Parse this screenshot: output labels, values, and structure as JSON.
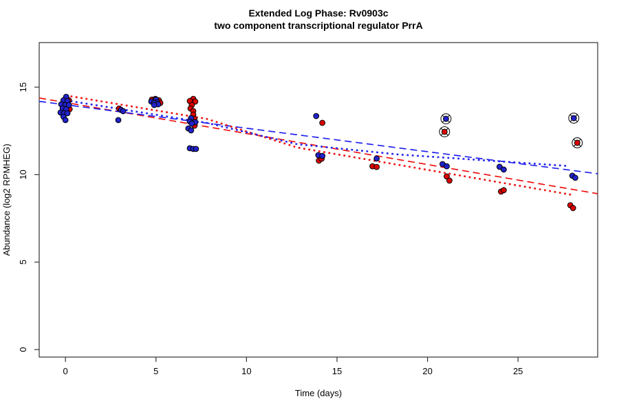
{
  "title": {
    "line1": "Extended Log Phase:      Rv0903c",
    "line2": "two component transcriptional regulator PrrA"
  },
  "chart_data": {
    "type": "scatter",
    "xlabel": "Time  (days)",
    "ylabel": "Abundance  (log2 RPMHEG)",
    "x_range": [
      -1.45,
      29.4
    ],
    "y_range": [
      -0.43,
      17.55
    ],
    "x_ticks": [
      0,
      5,
      10,
      15,
      20,
      25
    ],
    "y_ticks": [
      0,
      5,
      10,
      15
    ],
    "grid": false,
    "legend": "none",
    "colors": {
      "red_point": "#dd0000",
      "blue_point": "#2222cc",
      "red_line": "#ee1111",
      "blue_line": "#2222ee",
      "point_stroke": "#000000",
      "axis": "#333333",
      "outlier_ring": "#111111"
    },
    "series": [
      {
        "name": "red",
        "color_key": "red_point",
        "points": [
          {
            "t": 0.19,
            "v": 14.25
          },
          {
            "t": 0.23,
            "v": 13.74
          },
          {
            "t": 2.96,
            "v": 13.78
          },
          {
            "t": 4.78,
            "v": 14.29
          },
          {
            "t": 4.97,
            "v": 14.33
          },
          {
            "t": 5.16,
            "v": 14.25
          },
          {
            "t": 5.24,
            "v": 14.1
          },
          {
            "t": 7.06,
            "v": 14.33
          },
          {
            "t": 6.87,
            "v": 14.21
          },
          {
            "t": 7.17,
            "v": 14.18
          },
          {
            "t": 6.98,
            "v": 13.98
          },
          {
            "t": 6.91,
            "v": 13.78
          },
          {
            "t": 7.06,
            "v": 13.63
          },
          {
            "t": 7.06,
            "v": 13.43
          },
          {
            "t": 7.13,
            "v": 13.19
          },
          {
            "t": 7.13,
            "v": 12.8
          },
          {
            "t": 14.19,
            "v": 12.96
          },
          {
            "t": 14.0,
            "v": 10.8
          },
          {
            "t": 14.15,
            "v": 10.91
          },
          {
            "t": 16.96,
            "v": 10.48
          },
          {
            "t": 17.19,
            "v": 10.44
          },
          {
            "t": 20.94,
            "v": 12.45,
            "outlier": true
          },
          {
            "t": 21.06,
            "v": 9.9
          },
          {
            "t": 21.21,
            "v": 9.66
          },
          {
            "t": 24.06,
            "v": 9.03
          },
          {
            "t": 24.21,
            "v": 9.11
          },
          {
            "t": 28.27,
            "v": 11.82,
            "outlier": true
          },
          {
            "t": 27.89,
            "v": 8.25
          },
          {
            "t": 28.04,
            "v": 8.09
          }
        ]
      },
      {
        "name": "blue",
        "color_key": "blue_point",
        "points": [
          {
            "t": 0.04,
            "v": 14.45
          },
          {
            "t": -0.11,
            "v": 14.25
          },
          {
            "t": 0.11,
            "v": 14.21
          },
          {
            "t": -0.23,
            "v": 14.02
          },
          {
            "t": 0.0,
            "v": 13.98
          },
          {
            "t": 0.19,
            "v": 13.98
          },
          {
            "t": -0.15,
            "v": 13.78
          },
          {
            "t": 0.04,
            "v": 13.74
          },
          {
            "t": -0.27,
            "v": 13.55
          },
          {
            "t": -0.08,
            "v": 13.51
          },
          {
            "t": 0.11,
            "v": 13.51
          },
          {
            "t": -0.11,
            "v": 13.31
          },
          {
            "t": 0.0,
            "v": 13.12
          },
          {
            "t": 3.07,
            "v": 13.7
          },
          {
            "t": 3.19,
            "v": 13.63
          },
          {
            "t": 2.92,
            "v": 13.12
          },
          {
            "t": 4.74,
            "v": 14.18
          },
          {
            "t": 5.01,
            "v": 14.29
          },
          {
            "t": 5.05,
            "v": 14.14
          },
          {
            "t": 4.9,
            "v": 14.1
          },
          {
            "t": 5.12,
            "v": 14.02
          },
          {
            "t": 4.9,
            "v": 13.98
          },
          {
            "t": 6.94,
            "v": 13.23
          },
          {
            "t": 6.87,
            "v": 13.04
          },
          {
            "t": 7.17,
            "v": 13.0
          },
          {
            "t": 6.98,
            "v": 12.92
          },
          {
            "t": 6.79,
            "v": 12.64
          },
          {
            "t": 6.94,
            "v": 12.53
          },
          {
            "t": 6.87,
            "v": 11.51
          },
          {
            "t": 7.06,
            "v": 11.47
          },
          {
            "t": 7.21,
            "v": 11.47
          },
          {
            "t": 13.85,
            "v": 13.35
          },
          {
            "t": 13.97,
            "v": 11.11
          },
          {
            "t": 14.19,
            "v": 11.07
          },
          {
            "t": 17.19,
            "v": 10.92
          },
          {
            "t": 21.02,
            "v": 13.19,
            "outlier": true
          },
          {
            "t": 20.83,
            "v": 10.6
          },
          {
            "t": 21.06,
            "v": 10.48
          },
          {
            "t": 23.98,
            "v": 10.45
          },
          {
            "t": 24.21,
            "v": 10.29
          },
          {
            "t": 28.08,
            "v": 13.23,
            "outlier": true
          },
          {
            "t": 28.0,
            "v": 9.94
          },
          {
            "t": 28.16,
            "v": 9.82
          }
        ]
      }
    ],
    "fit_lines": [
      {
        "series": "red",
        "style": "dashed",
        "color_key": "red_line",
        "points": [
          {
            "t": -1.45,
            "v": 14.38
          },
          {
            "t": 29.4,
            "v": 8.91
          }
        ]
      },
      {
        "series": "blue",
        "style": "dashed",
        "color_key": "blue_line",
        "points": [
          {
            "t": -1.45,
            "v": 14.19
          },
          {
            "t": 29.4,
            "v": 10.05
          }
        ]
      },
      {
        "series": "red",
        "style": "dotted",
        "color_key": "red_line",
        "points": [
          {
            "t": 0,
            "v": 14.53
          },
          {
            "t": 7.8,
            "v": 13.19
          },
          {
            "t": 12.8,
            "v": 11.55
          },
          {
            "t": 18.4,
            "v": 10.56
          },
          {
            "t": 28.0,
            "v": 8.84
          }
        ]
      },
      {
        "series": "blue",
        "style": "dotted",
        "color_key": "blue_line",
        "points": [
          {
            "t": 0,
            "v": 14.25
          },
          {
            "t": 7.8,
            "v": 12.96
          },
          {
            "t": 12.8,
            "v": 11.74
          },
          {
            "t": 18.4,
            "v": 11.15
          },
          {
            "t": 27.8,
            "v": 10.49
          }
        ]
      }
    ]
  }
}
